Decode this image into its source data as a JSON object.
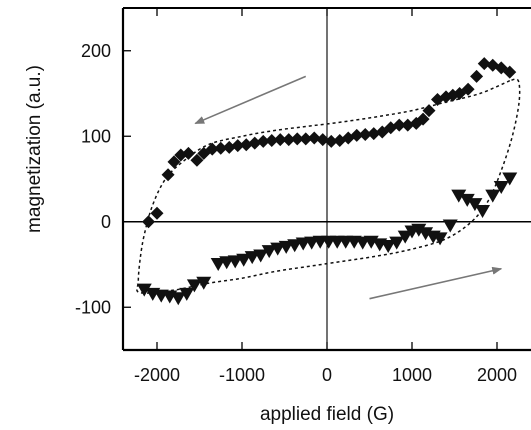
{
  "chart_data": {
    "type": "scatter",
    "title": "",
    "xlabel": "applied field (G)",
    "ylabel": "magnetization (a.u.)",
    "xlim": [
      -2400,
      2400
    ],
    "ylim": [
      -150,
      250
    ],
    "xticks": [
      -2000,
      -1000,
      0,
      1000,
      2000
    ],
    "yticks": [
      -100,
      0,
      100,
      200
    ],
    "xtick_labels": [
      "-2000",
      "-1000",
      "0",
      "1000",
      "2000"
    ],
    "ytick_labels": [
      "-100",
      "0",
      "100",
      "200"
    ],
    "grid": false,
    "zero_lines": true,
    "colors": {
      "markers": "#111111",
      "axes": "#000000",
      "loop": "#111111",
      "arrows": "#777777"
    },
    "series": [
      {
        "marker": "diamond",
        "sweep": "decreasing field",
        "points": [
          [
            2150,
            175
          ],
          [
            2050,
            180
          ],
          [
            1950,
            183
          ],
          [
            1850,
            185
          ],
          [
            1760,
            170
          ],
          [
            1660,
            155
          ],
          [
            1560,
            150
          ],
          [
            1480,
            148
          ],
          [
            1400,
            146
          ],
          [
            1300,
            143
          ],
          [
            1200,
            130
          ],
          [
            1130,
            120
          ],
          [
            1050,
            115
          ],
          [
            950,
            113
          ],
          [
            850,
            113
          ],
          [
            750,
            110
          ],
          [
            650,
            105
          ],
          [
            550,
            103
          ],
          [
            450,
            102
          ],
          [
            350,
            101
          ],
          [
            250,
            98
          ],
          [
            150,
            95
          ],
          [
            50,
            94
          ],
          [
            -50,
            96
          ],
          [
            -150,
            98
          ],
          [
            -250,
            97
          ],
          [
            -350,
            97
          ],
          [
            -450,
            96
          ],
          [
            -550,
            96
          ],
          [
            -650,
            95
          ],
          [
            -750,
            94
          ],
          [
            -850,
            92
          ],
          [
            -950,
            90
          ],
          [
            -1050,
            89
          ],
          [
            -1150,
            87
          ],
          [
            -1250,
            86
          ],
          [
            -1350,
            85
          ],
          [
            -1450,
            80
          ],
          [
            -1530,
            72
          ],
          [
            -1630,
            80
          ],
          [
            -1720,
            78
          ],
          [
            -1800,
            70
          ],
          [
            -1870,
            55
          ],
          [
            -2000,
            10
          ],
          [
            -2100,
            0
          ]
        ]
      },
      {
        "marker": "triangle-down",
        "sweep": "increasing field",
        "points": [
          [
            -2150,
            -80
          ],
          [
            -2050,
            -85
          ],
          [
            -1950,
            -87
          ],
          [
            -1850,
            -88
          ],
          [
            -1750,
            -90
          ],
          [
            -1650,
            -85
          ],
          [
            -1560,
            -75
          ],
          [
            -1450,
            -72
          ],
          [
            -1280,
            -50
          ],
          [
            -1180,
            -48
          ],
          [
            -1080,
            -47
          ],
          [
            -980,
            -45
          ],
          [
            -880,
            -42
          ],
          [
            -780,
            -40
          ],
          [
            -680,
            -35
          ],
          [
            -580,
            -32
          ],
          [
            -480,
            -30
          ],
          [
            -380,
            -28
          ],
          [
            -280,
            -26
          ],
          [
            -180,
            -25
          ],
          [
            -80,
            -24
          ],
          [
            20,
            -24
          ],
          [
            120,
            -24
          ],
          [
            220,
            -24
          ],
          [
            320,
            -24
          ],
          [
            420,
            -25
          ],
          [
            520,
            -24
          ],
          [
            620,
            -27
          ],
          [
            720,
            -29
          ],
          [
            820,
            -25
          ],
          [
            920,
            -18
          ],
          [
            1000,
            -12
          ],
          [
            1080,
            -10
          ],
          [
            1160,
            -14
          ],
          [
            1250,
            -18
          ],
          [
            1330,
            -20
          ],
          [
            1450,
            -5
          ],
          [
            1550,
            30
          ],
          [
            1650,
            25
          ],
          [
            1740,
            20
          ],
          [
            1830,
            12
          ],
          [
            1950,
            30
          ],
          [
            2050,
            40
          ],
          [
            2150,
            50
          ]
        ]
      },
      {
        "style": "dashed-line",
        "description_role": "fitted hysteresis loop",
        "points": [
          [
            2150,
            165
          ],
          [
            1800,
            150
          ],
          [
            1400,
            140
          ],
          [
            1000,
            130
          ],
          [
            600,
            123
          ],
          [
            200,
            117
          ],
          [
            -200,
            112
          ],
          [
            -600,
            107
          ],
          [
            -1000,
            100
          ],
          [
            -1400,
            90
          ],
          [
            -1700,
            70
          ],
          [
            -1900,
            50
          ],
          [
            -2050,
            20
          ],
          [
            -2150,
            -15
          ],
          [
            -2200,
            -45
          ],
          [
            -2220,
            -70
          ],
          [
            -2200,
            -83
          ],
          [
            -1800,
            -80
          ],
          [
            -1400,
            -72
          ],
          [
            -1000,
            -66
          ],
          [
            -600,
            -58
          ],
          [
            -200,
            -52
          ],
          [
            200,
            -46
          ],
          [
            600,
            -40
          ],
          [
            1000,
            -32
          ],
          [
            1400,
            -20
          ],
          [
            1700,
            0
          ],
          [
            1900,
            25
          ],
          [
            2050,
            60
          ],
          [
            2180,
            100
          ],
          [
            2260,
            140
          ],
          [
            2250,
            165
          ],
          [
            2150,
            165
          ]
        ]
      }
    ],
    "annotations": [
      {
        "type": "arrow",
        "from": [
          -250,
          170
        ],
        "to": [
          -1550,
          115
        ]
      },
      {
        "type": "arrow",
        "from": [
          500,
          -90
        ],
        "to": [
          2050,
          -55
        ]
      }
    ]
  }
}
